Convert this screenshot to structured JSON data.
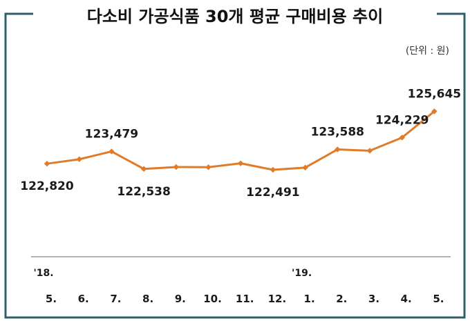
{
  "chart_data": {
    "type": "line",
    "title": "다소비 가공식품 30개 평균 구매비용 추이",
    "unit_note": "(단위 : 원)",
    "categories": [
      "5.",
      "6.",
      "7.",
      "8.",
      "9.",
      "10.",
      "11.",
      "12.",
      "1.",
      "2.",
      "3.",
      "4.",
      "5."
    ],
    "year_labels": [
      {
        "index": 0,
        "text": "'18."
      },
      {
        "index": 8,
        "text": "'19."
      }
    ],
    "series": [
      {
        "values": [
          122820,
          123060,
          123479,
          122538,
          122640,
          122630,
          122840,
          122491,
          122610,
          123588,
          123520,
          124229,
          125645
        ]
      }
    ],
    "data_labels": [
      {
        "index": 0,
        "text": "122,820",
        "position": "below"
      },
      {
        "index": 2,
        "text": "123,479",
        "position": "above"
      },
      {
        "index": 3,
        "text": "122,538",
        "position": "below"
      },
      {
        "index": 7,
        "text": "122,491",
        "position": "below"
      },
      {
        "index": 9,
        "text": "123,588",
        "position": "above"
      },
      {
        "index": 11,
        "text": "124,229",
        "position": "above"
      },
      {
        "index": 12,
        "text": "125,645",
        "position": "above"
      }
    ],
    "ylim": [
      117800,
      128300
    ],
    "grid": false,
    "legend": "none",
    "colors": {
      "line": "#e07b2a",
      "frame": "#2d5f6b",
      "axis": "#9a9a9a"
    }
  }
}
